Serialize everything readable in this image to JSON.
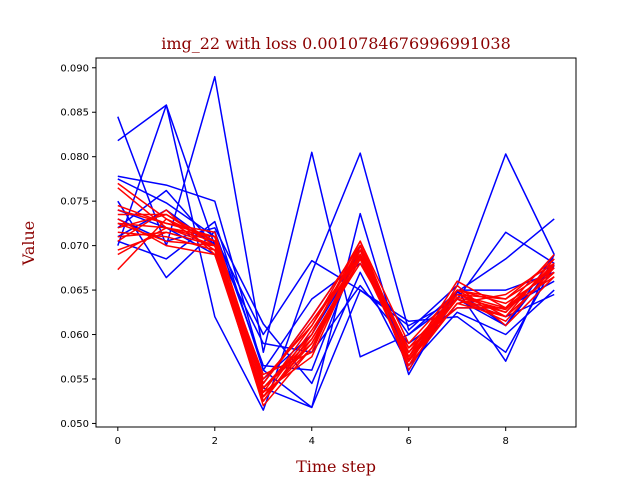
{
  "chart_data": {
    "type": "line",
    "title": "img_22 with loss 0.0010784676996991038",
    "xlabel": "Time step",
    "ylabel": "Value",
    "xlim": [
      -0.45,
      9.45
    ],
    "ylim": [
      0.0496,
      0.0911
    ],
    "xticks": [
      0,
      2,
      4,
      6,
      8
    ],
    "yticks": [
      0.05,
      0.055,
      0.06,
      0.065,
      0.07,
      0.075,
      0.08,
      0.085,
      0.09
    ],
    "ytick_labels": [
      "0.050",
      "0.055",
      "0.060",
      "0.065",
      "0.070",
      "0.075",
      "0.080",
      "0.085",
      "0.090"
    ],
    "grid": false,
    "colors": {
      "blue": "#0000ff",
      "red": "#ff0000",
      "title": "#8b0000",
      "axis_label": "#8b0000"
    },
    "x": [
      0,
      1,
      2,
      3,
      4,
      5,
      6,
      7,
      8,
      9
    ],
    "series": [
      {
        "color": "blue",
        "values": [
          0.0845,
          0.07,
          0.089,
          0.058,
          0.0805,
          0.0575,
          0.06,
          0.064,
          0.061,
          0.069
        ]
      },
      {
        "color": "blue",
        "values": [
          0.0818,
          0.0858,
          0.062,
          0.0515,
          0.067,
          0.0804,
          0.0605,
          0.0655,
          0.0803,
          0.069
        ]
      },
      {
        "color": "blue",
        "values": [
          0.07,
          0.0858,
          0.07,
          0.054,
          0.0518,
          0.0736,
          0.0555,
          0.065,
          0.057,
          0.069
        ]
      },
      {
        "color": "blue",
        "values": [
          0.0778,
          0.0768,
          0.075,
          0.056,
          0.064,
          0.068,
          0.06,
          0.0648,
          0.061,
          0.068
        ]
      },
      {
        "color": "blue",
        "values": [
          0.0775,
          0.0748,
          0.071,
          0.06,
          0.0683,
          0.065,
          0.061,
          0.064,
          0.0715,
          0.068
        ]
      },
      {
        "color": "blue",
        "values": [
          0.075,
          0.0664,
          0.0716,
          0.0565,
          0.056,
          0.07,
          0.056,
          0.0648,
          0.0685,
          0.073
        ]
      },
      {
        "color": "blue",
        "values": [
          0.0705,
          0.0685,
          0.0727,
          0.056,
          0.0518,
          0.065,
          0.0615,
          0.062,
          0.058,
          0.0678
        ]
      },
      {
        "color": "blue",
        "values": [
          0.072,
          0.0762,
          0.07,
          0.059,
          0.058,
          0.0655,
          0.059,
          0.063,
          0.063,
          0.066
        ]
      },
      {
        "color": "blue",
        "values": [
          0.073,
          0.0705,
          0.072,
          0.0612,
          0.0545,
          0.067,
          0.0565,
          0.0625,
          0.06,
          0.065
        ]
      },
      {
        "color": "blue",
        "values": [
          0.074,
          0.072,
          0.069,
          0.055,
          0.06,
          0.069,
          0.058,
          0.064,
          0.062,
          0.0645
        ]
      },
      {
        "color": "blue",
        "values": [
          0.071,
          0.074,
          0.07,
          0.0545,
          0.062,
          0.07,
          0.057,
          0.065,
          0.065,
          0.067
        ]
      },
      {
        "color": "red",
        "values": [
          0.0735,
          0.0735,
          0.0705,
          0.054,
          0.06,
          0.07,
          0.0575,
          0.0645,
          0.063,
          0.0675
        ]
      },
      {
        "color": "red",
        "values": [
          0.0725,
          0.072,
          0.07,
          0.053,
          0.059,
          0.069,
          0.058,
          0.064,
          0.0625,
          0.068
        ]
      },
      {
        "color": "red",
        "values": [
          0.0715,
          0.071,
          0.0695,
          0.052,
          0.0585,
          0.0685,
          0.057,
          0.0635,
          0.062,
          0.067
        ]
      },
      {
        "color": "red",
        "values": [
          0.0745,
          0.0725,
          0.071,
          0.055,
          0.061,
          0.0705,
          0.059,
          0.065,
          0.064,
          0.0685
        ]
      },
      {
        "color": "red",
        "values": [
          0.0705,
          0.074,
          0.069,
          0.0535,
          0.0575,
          0.0695,
          0.0565,
          0.0655,
          0.061,
          0.0665
        ]
      },
      {
        "color": "red",
        "values": [
          0.0695,
          0.0715,
          0.07,
          0.0525,
          0.0595,
          0.068,
          0.0585,
          0.063,
          0.063,
          0.069
        ]
      },
      {
        "color": "red",
        "values": [
          0.077,
          0.073,
          0.0705,
          0.0545,
          0.062,
          0.07,
          0.0575,
          0.064,
          0.0615,
          0.0675
        ]
      },
      {
        "color": "red",
        "values": [
          0.0765,
          0.072,
          0.071,
          0.053,
          0.0605,
          0.069,
          0.058,
          0.0645,
          0.0625,
          0.068
        ]
      },
      {
        "color": "red",
        "values": [
          0.0725,
          0.0705,
          0.07,
          0.0555,
          0.058,
          0.07,
          0.056,
          0.065,
          0.0635,
          0.067
        ]
      },
      {
        "color": "red",
        "values": [
          0.069,
          0.072,
          0.0705,
          0.054,
          0.059,
          0.0685,
          0.057,
          0.064,
          0.062,
          0.0685
        ]
      },
      {
        "color": "red",
        "values": [
          0.0673,
          0.073,
          0.0695,
          0.0535,
          0.061,
          0.0695,
          0.0585,
          0.0645,
          0.064,
          0.0675
        ]
      },
      {
        "color": "red",
        "values": [
          0.073,
          0.07,
          0.069,
          0.0525,
          0.06,
          0.0705,
          0.0575,
          0.066,
          0.063,
          0.0665
        ]
      },
      {
        "color": "red",
        "values": [
          0.074,
          0.0725,
          0.0715,
          0.0545,
          0.0615,
          0.069,
          0.0565,
          0.0635,
          0.0645,
          0.068
        ]
      },
      {
        "color": "red",
        "values": [
          0.072,
          0.0735,
          0.07,
          0.053,
          0.0585,
          0.07,
          0.058,
          0.065,
          0.062,
          0.067
        ]
      },
      {
        "color": "red",
        "values": [
          0.071,
          0.0715,
          0.07,
          0.054,
          0.0595,
          0.0688,
          0.0572,
          0.0642,
          0.0628,
          0.0678
        ]
      }
    ]
  }
}
